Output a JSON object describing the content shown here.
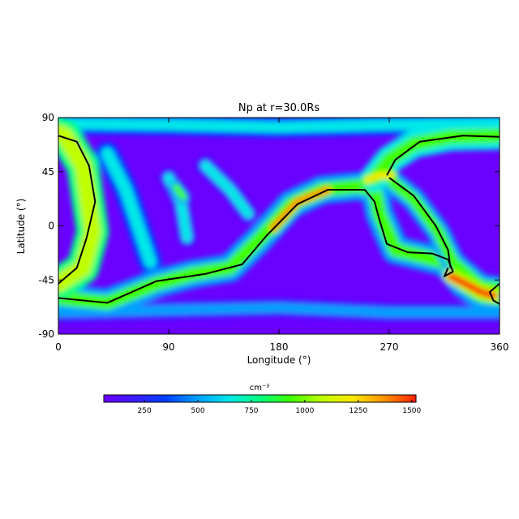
{
  "chart_data": {
    "type": "heatmap",
    "title": "Np at r=30.0Rs",
    "xlabel": "Longitude (°)",
    "ylabel": "Latitude (°)",
    "xlim": [
      0,
      360
    ],
    "ylim": [
      -90,
      90
    ],
    "xticks": [
      "0",
      "90",
      "180",
      "270",
      "360"
    ],
    "yticks": [
      "90",
      "45",
      "0",
      "-45",
      "-90"
    ],
    "colorbar": {
      "label": "cm⁻³",
      "range": [
        60,
        1520
      ],
      "ticks": [
        "250",
        "500",
        "750",
        "1000",
        "1250",
        "1500"
      ],
      "tick_values": [
        250,
        500,
        750,
        1000,
        1250,
        1500
      ],
      "colormap": [
        "#6a00ff",
        "#3a1bff",
        "#0040ff",
        "#00a0ff",
        "#00e8e8",
        "#00ff80",
        "#40ff00",
        "#c0ff00",
        "#ffe600",
        "#ff9000",
        "#ff2000"
      ]
    },
    "background_value": 120,
    "features": [
      {
        "name": "main dense sheet",
        "value": 1150,
        "width": 14,
        "points": [
          [
            0,
            -48
          ],
          [
            20,
            -35
          ],
          [
            28,
            -5
          ],
          [
            20,
            50
          ],
          [
            5,
            75
          ],
          [
            0,
            77
          ]
        ]
      },
      {
        "name": "sheet low band",
        "value": 900,
        "width": 12,
        "points": [
          [
            0,
            -60
          ],
          [
            40,
            -64
          ],
          [
            80,
            -48
          ],
          [
            110,
            -40
          ],
          [
            140,
            -35
          ],
          [
            165,
            -10
          ],
          [
            190,
            18
          ],
          [
            215,
            30
          ],
          [
            245,
            33
          ],
          [
            258,
            30
          ],
          [
            262,
            10
          ],
          [
            275,
            -20
          ],
          [
            295,
            -25
          ],
          [
            315,
            -30
          ],
          [
            330,
            -48
          ],
          [
            345,
            -58
          ],
          [
            360,
            -60
          ]
        ]
      },
      {
        "name": "sheet core",
        "value": 1350,
        "width": 6,
        "points": [
          [
            175,
            -2
          ],
          [
            195,
            20
          ],
          [
            220,
            30
          ]
        ]
      },
      {
        "name": "northern arc",
        "value": 950,
        "width": 12,
        "points": [
          [
            258,
            40
          ],
          [
            270,
            55
          ],
          [
            290,
            68
          ],
          [
            320,
            74
          ],
          [
            360,
            75
          ]
        ]
      },
      {
        "name": "right diagonal",
        "value": 900,
        "width": 10,
        "points": [
          [
            268,
            40
          ],
          [
            290,
            22
          ],
          [
            310,
            -5
          ],
          [
            322,
            -30
          ],
          [
            345,
            -50
          ],
          [
            360,
            -52
          ]
        ]
      },
      {
        "name": "hot spot southeast",
        "value": 1500,
        "width": 6,
        "points": [
          [
            320,
            -42
          ],
          [
            332,
            -48
          ],
          [
            345,
            -55
          ],
          [
            355,
            -58
          ]
        ]
      },
      {
        "name": "hot spot north",
        "value": 1300,
        "width": 5,
        "points": [
          [
            252,
            38
          ],
          [
            262,
            42
          ],
          [
            272,
            42
          ]
        ]
      },
      {
        "name": "left cyan fan",
        "value": 650,
        "width": 10,
        "points": [
          [
            40,
            60
          ],
          [
            55,
            30
          ],
          [
            65,
            0
          ],
          [
            75,
            -30
          ]
        ]
      },
      {
        "name": "inner cyan streak",
        "value": 600,
        "width": 8,
        "points": [
          [
            90,
            40
          ],
          [
            100,
            20
          ],
          [
            105,
            -10
          ]
        ]
      },
      {
        "name": "green knot",
        "value": 900,
        "width": 6,
        "points": [
          [
            96,
            32
          ],
          [
            102,
            24
          ]
        ]
      },
      {
        "name": "mid cyan streak",
        "value": 620,
        "width": 8,
        "points": [
          [
            120,
            50
          ],
          [
            140,
            30
          ],
          [
            155,
            10
          ]
        ]
      },
      {
        "name": "north cap band",
        "value": 700,
        "width": 9,
        "points": [
          [
            0,
            85
          ],
          [
            90,
            84
          ],
          [
            180,
            82
          ],
          [
            270,
            84
          ],
          [
            360,
            85
          ]
        ]
      },
      {
        "name": "south ring",
        "value": 560,
        "width": 8,
        "points": [
          [
            0,
            -72
          ],
          [
            90,
            -70
          ],
          [
            180,
            -68
          ],
          [
            270,
            -72
          ],
          [
            360,
            -72
          ]
        ]
      }
    ],
    "contours": [
      {
        "name": "neutral line main",
        "points": [
          [
            0,
            -48
          ],
          [
            15,
            -35
          ],
          [
            23,
            -10
          ],
          [
            30,
            20
          ],
          [
            25,
            50
          ],
          [
            15,
            70
          ],
          [
            0,
            75
          ]
        ]
      },
      {
        "name": "neutral line wide",
        "points": [
          [
            0,
            -60
          ],
          [
            40,
            -64
          ],
          [
            80,
            -46
          ],
          [
            120,
            -40
          ],
          [
            150,
            -32
          ],
          [
            170,
            -8
          ],
          [
            195,
            18
          ],
          [
            220,
            30
          ],
          [
            250,
            30
          ],
          [
            258,
            20
          ],
          [
            262,
            5
          ],
          [
            268,
            -15
          ],
          [
            285,
            -22
          ],
          [
            305,
            -23
          ],
          [
            318,
            -28
          ],
          [
            322,
            -38
          ],
          [
            315,
            -42
          ],
          [
            318,
            -35
          ]
        ]
      },
      {
        "name": "neutral line upper",
        "points": [
          [
            268,
            42
          ],
          [
            275,
            55
          ],
          [
            295,
            70
          ],
          [
            330,
            75
          ],
          [
            360,
            74
          ]
        ]
      },
      {
        "name": "neutral line loop",
        "points": [
          [
            270,
            40
          ],
          [
            290,
            25
          ],
          [
            308,
            0
          ],
          [
            318,
            -20
          ],
          [
            320,
            -35
          ]
        ]
      },
      {
        "name": "neutral line edge",
        "points": [
          [
            360,
            -48
          ],
          [
            352,
            -55
          ],
          [
            355,
            -62
          ],
          [
            360,
            -65
          ]
        ]
      }
    ]
  }
}
